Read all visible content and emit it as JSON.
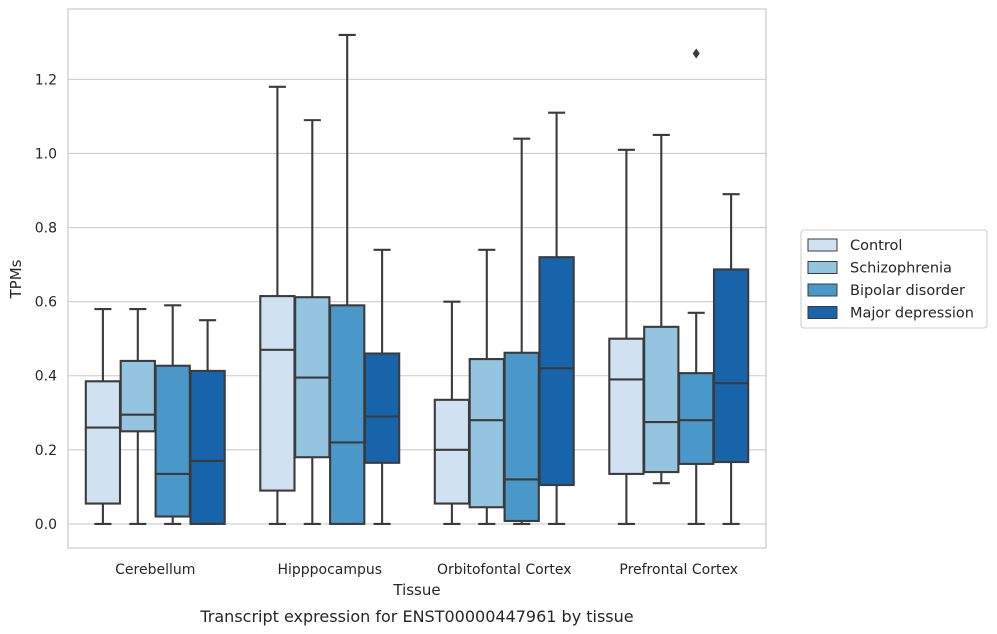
{
  "caption": "Transcript expression for ENST00000447961 by tissue",
  "chart_data": {
    "type": "boxplot",
    "xlabel": "Tissue",
    "ylabel": "TPMs",
    "ylim": [
      -0.065,
      1.39
    ],
    "yticks": [
      0.0,
      0.2,
      0.4,
      0.6,
      0.8,
      1.0,
      1.2
    ],
    "ytick_labels": [
      "0.0",
      "0.2",
      "0.4",
      "0.6",
      "0.8",
      "1.0",
      "1.2"
    ],
    "grid": "horizontal",
    "legend_position": "right",
    "categories": [
      "Cerebellum",
      "Hipppocampus",
      "Orbitofontal Cortex",
      "Prefrontal Cortex"
    ],
    "series": [
      {
        "name": "Control",
        "color": "#d0e1f2",
        "boxes": [
          {
            "whislo": 0.0,
            "q1": 0.055,
            "med": 0.26,
            "q3": 0.385,
            "whishi": 0.58
          },
          {
            "whislo": 0.0,
            "q1": 0.09,
            "med": 0.47,
            "q3": 0.615,
            "whishi": 1.18
          },
          {
            "whislo": 0.0,
            "q1": 0.055,
            "med": 0.2,
            "q3": 0.335,
            "whishi": 0.6
          },
          {
            "whislo": 0.0,
            "q1": 0.135,
            "med": 0.39,
            "q3": 0.5,
            "whishi": 1.01
          }
        ]
      },
      {
        "name": "Schizophrenia",
        "color": "#94c4df",
        "boxes": [
          {
            "whislo": 0.0,
            "q1": 0.25,
            "med": 0.295,
            "q3": 0.44,
            "whishi": 0.58
          },
          {
            "whislo": 0.0,
            "q1": 0.18,
            "med": 0.395,
            "q3": 0.612,
            "whishi": 1.09
          },
          {
            "whislo": 0.0,
            "q1": 0.045,
            "med": 0.28,
            "q3": 0.445,
            "whishi": 0.74
          },
          {
            "whislo": 0.11,
            "q1": 0.14,
            "med": 0.275,
            "q3": 0.532,
            "whishi": 1.05
          }
        ]
      },
      {
        "name": "Bipolar disorder",
        "color": "#4a98c9",
        "boxes": [
          {
            "whislo": 0.0,
            "q1": 0.02,
            "med": 0.135,
            "q3": 0.427,
            "whishi": 0.59
          },
          {
            "whislo": 0.0,
            "q1": 0.0,
            "med": 0.22,
            "q3": 0.59,
            "whishi": 1.32
          },
          {
            "whislo": 0.0,
            "q1": 0.008,
            "med": 0.12,
            "q3": 0.462,
            "whishi": 1.04
          },
          {
            "whislo": 0.0,
            "q1": 0.162,
            "med": 0.28,
            "q3": 0.407,
            "whishi": 0.57
          }
        ]
      },
      {
        "name": "Major depression",
        "color": "#1764ab",
        "boxes": [
          {
            "whislo": 0.0,
            "q1": 0.0,
            "med": 0.17,
            "q3": 0.413,
            "whishi": 0.55
          },
          {
            "whislo": 0.0,
            "q1": 0.165,
            "med": 0.29,
            "q3": 0.46,
            "whishi": 0.74
          },
          {
            "whislo": 0.0,
            "q1": 0.105,
            "med": 0.42,
            "q3": 0.72,
            "whishi": 1.11
          },
          {
            "whislo": 0.0,
            "q1": 0.167,
            "med": 0.38,
            "q3": 0.687,
            "whishi": 0.89
          }
        ]
      }
    ],
    "outliers": [
      {
        "category": "Prefrontal Cortex",
        "series": "Bipolar disorder",
        "value": 1.27
      }
    ]
  }
}
